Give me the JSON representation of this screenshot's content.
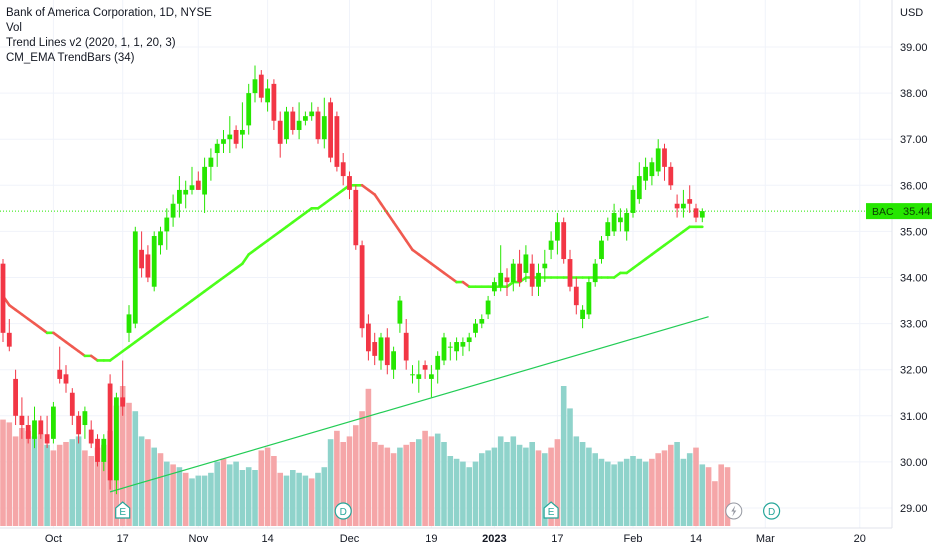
{
  "legend": {
    "title": "Bank of America Corporation, 1D, NYSE",
    "vol": "Vol",
    "trend": "Trend Lines v2 (2020, 1, 1, 20, 3)",
    "ema": "CM_EMA TrendBars (34)"
  },
  "chart_data": {
    "type": "candlestick",
    "currency": "USD",
    "ylim": [
      28.8,
      39.6
    ],
    "y_ticks": [
      "39.00",
      "38.00",
      "37.00",
      "36.00",
      "35.00",
      "34.00",
      "33.00",
      "32.00",
      "31.00",
      "30.00",
      "29.00"
    ],
    "x_ticks": [
      {
        "label": "Oct",
        "bold": false,
        "idx": 8
      },
      {
        "label": "17",
        "bold": false,
        "idx": 19
      },
      {
        "label": "Nov",
        "bold": false,
        "idx": 31
      },
      {
        "label": "14",
        "bold": false,
        "idx": 42
      },
      {
        "label": "Dec",
        "bold": false,
        "idx": 55
      },
      {
        "label": "19",
        "bold": false,
        "idx": 68
      },
      {
        "label": "2023",
        "bold": true,
        "idx": 78
      },
      {
        "label": "17",
        "bold": false,
        "idx": 88
      },
      {
        "label": "Feb",
        "bold": false,
        "idx": 100
      },
      {
        "label": "14",
        "bold": false,
        "idx": 110
      },
      {
        "label": "Mar",
        "bold": false,
        "idx": 121
      },
      {
        "label": "20",
        "bold": false,
        "idx": 136
      }
    ],
    "last_price_label": "35.44",
    "last_price_ticker": "BAC",
    "last_price": 35.44,
    "colors": {
      "up": "#26e600",
      "down": "#f23645",
      "vol_up": "#8fd3cb",
      "vol_down": "#f5a6a8",
      "ema_up": "#4cff1a",
      "ema_down": "#f05a50",
      "trend": "#22cc55"
    },
    "candles": [
      [
        34.3,
        34.4,
        32.6,
        32.8
      ],
      [
        32.8,
        33.1,
        32.4,
        32.5
      ],
      [
        31.8,
        32.0,
        30.8,
        31.0
      ],
      [
        31.0,
        31.4,
        30.5,
        30.8
      ],
      [
        30.8,
        31.0,
        30.4,
        30.5
      ],
      [
        30.5,
        31.2,
        30.3,
        30.9
      ],
      [
        30.9,
        31.0,
        30.5,
        30.6
      ],
      [
        30.6,
        31.0,
        30.3,
        30.4
      ],
      [
        30.5,
        31.3,
        30.4,
        31.2
      ],
      [
        32.0,
        32.5,
        31.7,
        31.8
      ],
      [
        31.9,
        32.1,
        31.5,
        31.7
      ],
      [
        31.5,
        31.6,
        30.8,
        31.0
      ],
      [
        31.0,
        31.1,
        30.4,
        30.6
      ],
      [
        30.8,
        31.2,
        30.5,
        31.1
      ],
      [
        30.7,
        30.9,
        30.3,
        30.4
      ],
      [
        30.5,
        30.6,
        29.9,
        30.0
      ],
      [
        30.0,
        30.6,
        29.8,
        30.5
      ],
      [
        31.7,
        31.9,
        29.4,
        29.6
      ],
      [
        29.6,
        31.5,
        29.3,
        31.4
      ],
      [
        31.4,
        32.2,
        31.0,
        31.2
      ],
      [
        32.8,
        33.4,
        32.6,
        33.2
      ],
      [
        33.0,
        35.1,
        32.9,
        35.0
      ],
      [
        34.6,
        35.0,
        34.0,
        34.2
      ],
      [
        34.5,
        34.7,
        33.9,
        34.0
      ],
      [
        33.8,
        35.0,
        33.7,
        34.9
      ],
      [
        34.7,
        35.1,
        34.5,
        35.0
      ],
      [
        35.0,
        35.5,
        34.6,
        35.3
      ],
      [
        35.3,
        35.8,
        35.1,
        35.6
      ],
      [
        35.6,
        36.2,
        35.3,
        35.9
      ],
      [
        35.8,
        36.1,
        35.5,
        35.9
      ],
      [
        35.9,
        36.4,
        35.8,
        36.0
      ],
      [
        36.1,
        36.3,
        35.9,
        35.9
      ],
      [
        35.8,
        36.6,
        35.4,
        36.4
      ],
      [
        36.4,
        36.8,
        36.1,
        36.6
      ],
      [
        36.7,
        37.0,
        36.4,
        36.9
      ],
      [
        36.9,
        37.2,
        36.7,
        37.0
      ],
      [
        37.0,
        37.5,
        36.7,
        37.1
      ],
      [
        37.2,
        37.3,
        36.8,
        36.9
      ],
      [
        37.1,
        37.8,
        36.8,
        37.2
      ],
      [
        37.3,
        38.2,
        37.1,
        38.0
      ],
      [
        38.0,
        38.6,
        37.8,
        38.3
      ],
      [
        38.4,
        38.5,
        37.8,
        37.9
      ],
      [
        37.8,
        38.3,
        37.6,
        38.1
      ],
      [
        38.2,
        38.3,
        37.2,
        37.4
      ],
      [
        37.4,
        37.6,
        36.6,
        36.9
      ],
      [
        37.0,
        37.7,
        36.9,
        37.6
      ],
      [
        37.6,
        37.7,
        37.1,
        37.2
      ],
      [
        37.2,
        37.8,
        37.0,
        37.4
      ],
      [
        37.4,
        37.6,
        37.3,
        37.5
      ],
      [
        37.5,
        37.8,
        37.4,
        37.6
      ],
      [
        37.6,
        37.7,
        36.9,
        37.0
      ],
      [
        37.0,
        37.9,
        36.8,
        37.5
      ],
      [
        37.8,
        37.9,
        36.5,
        36.6
      ],
      [
        37.5,
        37.6,
        36.3,
        36.4
      ],
      [
        36.5,
        36.7,
        36.0,
        36.2
      ],
      [
        36.2,
        36.3,
        35.7,
        35.9
      ],
      [
        35.9,
        36.0,
        34.6,
        34.7
      ],
      [
        34.7,
        34.8,
        32.7,
        32.9
      ],
      [
        33.0,
        33.2,
        32.2,
        32.4
      ],
      [
        32.6,
        32.8,
        32.1,
        32.3
      ],
      [
        32.2,
        32.8,
        32.0,
        32.7
      ],
      [
        32.7,
        32.9,
        31.9,
        32.1
      ],
      [
        32.0,
        32.5,
        31.8,
        32.4
      ],
      [
        33.0,
        33.6,
        32.8,
        33.5
      ],
      [
        32.8,
        33.1,
        32.0,
        32.2
      ],
      [
        31.9,
        32.1,
        31.7,
        31.9
      ],
      [
        31.8,
        32.2,
        31.5,
        31.9
      ],
      [
        32.1,
        32.2,
        31.8,
        32.0
      ],
      [
        31.8,
        32.1,
        31.4,
        31.9
      ],
      [
        32.0,
        32.4,
        31.7,
        32.3
      ],
      [
        32.2,
        32.8,
        32.1,
        32.7
      ],
      [
        32.5,
        32.6,
        32.2,
        32.5
      ],
      [
        32.4,
        32.7,
        32.2,
        32.6
      ],
      [
        32.5,
        32.7,
        32.3,
        32.6
      ],
      [
        32.6,
        32.8,
        32.4,
        32.7
      ],
      [
        32.8,
        33.1,
        32.7,
        33.0
      ],
      [
        33.0,
        33.2,
        32.9,
        33.1
      ],
      [
        33.2,
        33.6,
        33.1,
        33.5
      ],
      [
        33.7,
        34.0,
        33.6,
        33.9
      ],
      [
        33.8,
        34.7,
        33.7,
        34.1
      ],
      [
        34.0,
        34.2,
        33.6,
        33.9
      ],
      [
        33.9,
        34.4,
        33.7,
        34.3
      ],
      [
        34.3,
        34.6,
        33.8,
        33.9
      ],
      [
        34.1,
        34.7,
        33.9,
        34.5
      ],
      [
        34.3,
        34.5,
        33.6,
        33.8
      ],
      [
        33.8,
        34.3,
        33.6,
        34.1
      ],
      [
        34.2,
        34.6,
        33.9,
        34.3
      ],
      [
        34.6,
        35.0,
        34.4,
        34.8
      ],
      [
        34.8,
        35.4,
        34.5,
        35.2
      ],
      [
        35.2,
        35.3,
        34.3,
        34.4
      ],
      [
        34.4,
        34.6,
        33.7,
        33.8
      ],
      [
        33.8,
        34.0,
        33.2,
        33.4
      ],
      [
        33.1,
        33.4,
        32.9,
        33.3
      ],
      [
        33.2,
        34.0,
        33.1,
        33.9
      ],
      [
        33.9,
        34.4,
        33.8,
        34.3
      ],
      [
        34.4,
        34.9,
        34.3,
        34.8
      ],
      [
        34.9,
        35.3,
        34.8,
        35.2
      ],
      [
        35.0,
        35.6,
        34.9,
        35.4
      ],
      [
        35.2,
        35.5,
        35.0,
        35.3
      ],
      [
        35.0,
        35.5,
        34.8,
        35.4
      ],
      [
        35.4,
        36.0,
        35.3,
        35.9
      ],
      [
        35.7,
        36.5,
        35.6,
        36.2
      ],
      [
        36.1,
        36.6,
        35.9,
        36.4
      ],
      [
        36.2,
        36.6,
        36.0,
        36.5
      ],
      [
        36.3,
        37.0,
        36.2,
        36.8
      ],
      [
        36.8,
        36.9,
        36.1,
        36.4
      ],
      [
        36.4,
        36.5,
        35.9,
        36.0
      ],
      [
        35.6,
        35.8,
        35.3,
        35.5
      ],
      [
        35.5,
        35.9,
        35.3,
        35.6
      ],
      [
        35.7,
        36.0,
        35.4,
        35.6
      ],
      [
        35.5,
        35.6,
        35.2,
        35.3
      ],
      [
        35.3,
        35.5,
        35.2,
        35.44
      ]
    ],
    "volume_up_flags": "0000010100011000000001101010101111101111100001111011100000000001001001111111111111111010011111111111111000011101",
    "volume": [
      3.8,
      3.7,
      3.2,
      3.5,
      3.4,
      3.2,
      3.3,
      2.9,
      2.7,
      2.9,
      3.0,
      3.1,
      3.2,
      2.7,
      2.5,
      2.8,
      2.9,
      3.4,
      4.3,
      5.0,
      4.4,
      4.1,
      3.2,
      3.1,
      2.8,
      2.6,
      2.3,
      2.2,
      2.1,
      1.9,
      1.7,
      1.8,
      1.8,
      1.9,
      2.3,
      2.4,
      2.2,
      2.3,
      2.0,
      2.1,
      2.0,
      2.7,
      2.8,
      2.5,
      1.9,
      1.8,
      2.0,
      1.9,
      1.8,
      1.7,
      1.9,
      2.1,
      3.1,
      3.4,
      3.0,
      3.2,
      3.6,
      4.1,
      4.9,
      3.0,
      2.9,
      2.8,
      2.6,
      2.8,
      2.9,
      3.0,
      3.1,
      3.4,
      3.2,
      3.3,
      3.0,
      2.5,
      2.4,
      2.3,
      2.1,
      2.3,
      2.6,
      2.7,
      2.8,
      3.2,
      3.0,
      3.2,
      2.9,
      2.8,
      3.0,
      2.7,
      2.6,
      2.8,
      3.1,
      5.0,
      4.2,
      3.2,
      3.0,
      2.8,
      2.6,
      2.4,
      2.3,
      2.2,
      2.3,
      2.4,
      2.5,
      2.4,
      2.3,
      2.4,
      2.6,
      2.7,
      2.9,
      3.0,
      2.4,
      2.6,
      2.8,
      2.2,
      2.1,
      1.6,
      2.2,
      2.1
    ],
    "ema_34": [
      33.6,
      33.4,
      33.3,
      33.2,
      33.1,
      33.0,
      32.9,
      32.8,
      32.8,
      32.7,
      32.6,
      32.5,
      32.4,
      32.3,
      32.3,
      32.2,
      32.2,
      32.2,
      32.3,
      32.4,
      32.5,
      32.6,
      32.7,
      32.8,
      32.9,
      33.0,
      33.1,
      33.2,
      33.3,
      33.4,
      33.5,
      33.6,
      33.7,
      33.8,
      33.9,
      34.0,
      34.1,
      34.2,
      34.3,
      34.5,
      34.6,
      34.7,
      34.8,
      34.9,
      35.0,
      35.1,
      35.2,
      35.3,
      35.4,
      35.5,
      35.5,
      35.6,
      35.7,
      35.8,
      35.9,
      36.0,
      36.0,
      36.0,
      35.9,
      35.8,
      35.6,
      35.4,
      35.2,
      35.0,
      34.8,
      34.6,
      34.5,
      34.4,
      34.3,
      34.2,
      34.1,
      34.0,
      33.9,
      33.9,
      33.8,
      33.8,
      33.8,
      33.8,
      33.8,
      33.8,
      33.8,
      33.9,
      33.9,
      34.0,
      34.0,
      34.0,
      34.0,
      34.0,
      34.0,
      34.0,
      34.0,
      34.0,
      34.0,
      34.0,
      34.0,
      34.0,
      34.0,
      34.0,
      34.1,
      34.1,
      34.2,
      34.3,
      34.4,
      34.5,
      34.6,
      34.7,
      34.8,
      34.9,
      35.0,
      35.1,
      35.1,
      35.1
    ],
    "trend_line": {
      "start_index": 17,
      "start_price": 29.35,
      "end_index": 112,
      "end_price": 33.15
    },
    "events": [
      {
        "label": "E",
        "idx": 19,
        "kind": "earnings"
      },
      {
        "label": "D",
        "idx": 54,
        "kind": "dividend"
      },
      {
        "label": "E",
        "idx": 87,
        "kind": "earnings"
      },
      {
        "label": "D",
        "idx": 122,
        "kind": "dividend"
      }
    ]
  }
}
